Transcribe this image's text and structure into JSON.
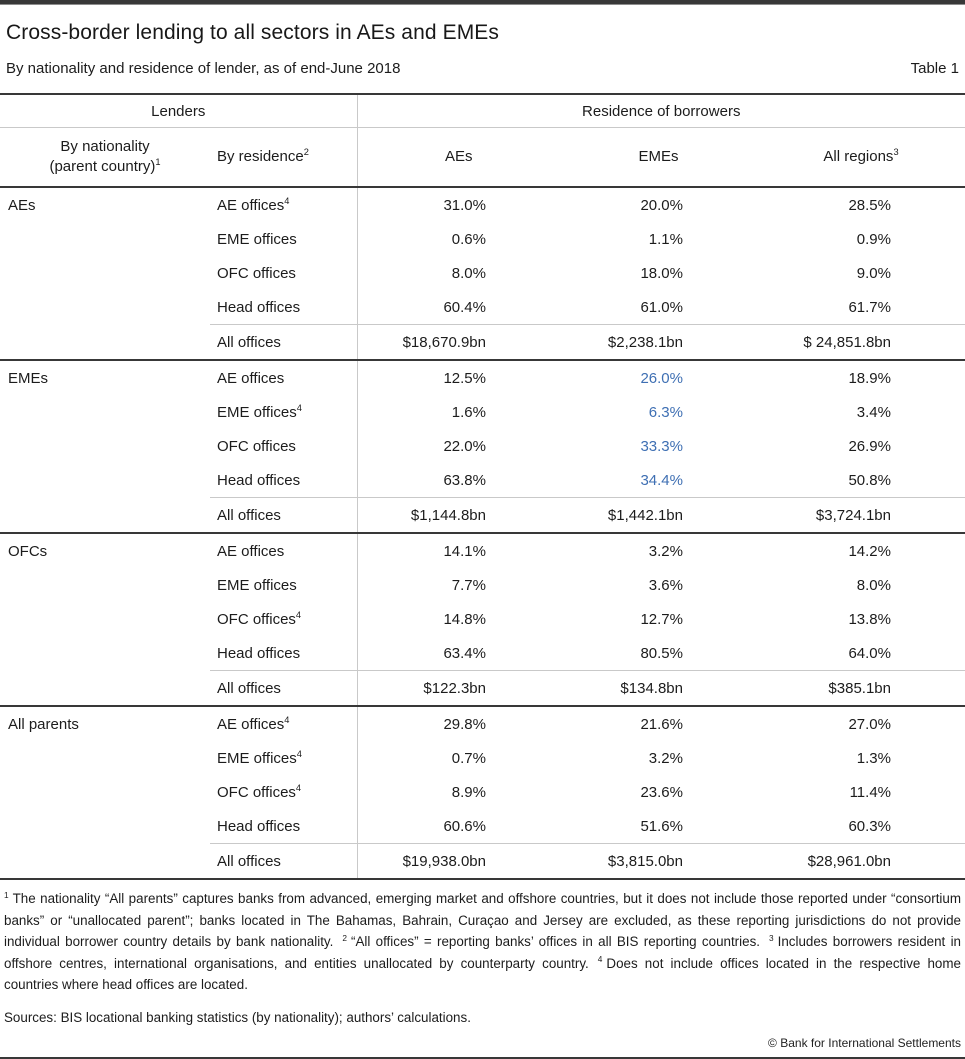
{
  "page": {
    "title": "Cross-border lending to all sectors in AEs and EMEs",
    "subtitle": "By nationality and residence of lender, as of end-June 2018",
    "table_label": "Table 1"
  },
  "table": {
    "header": {
      "lenders": "Lenders",
      "borrowers": "Residence of borrowers",
      "col_nationality_line1": "By nationality",
      "col_nationality_line2": "(parent country)",
      "col_nationality_sup": "1",
      "col_residence": "By residence",
      "col_residence_sup": "2",
      "col_aes": "AEs",
      "col_emes": "EMEs",
      "col_all_regions": "All regions",
      "col_all_regions_sup": "3"
    },
    "sections": [
      {
        "nationality": "AEs",
        "emes_highlight": false,
        "rows": [
          {
            "office": "AE offices",
            "sup": "4",
            "aes": "31.0%",
            "emes": "20.0%",
            "all": "28.5%"
          },
          {
            "office": "EME offices",
            "aes": "0.6%",
            "emes": "1.1%",
            "all": "0.9%"
          },
          {
            "office": "OFC offices",
            "aes": "8.0%",
            "emes": "18.0%",
            "all": "9.0%"
          },
          {
            "office": "Head offices",
            "aes": "60.4%",
            "emes": "61.0%",
            "all": "61.7%"
          },
          {
            "office": "All offices",
            "total": true,
            "aes": "$18,670.9bn",
            "emes": "$2,238.1bn",
            "all": "$ 24,851.8bn"
          }
        ]
      },
      {
        "nationality": "EMEs",
        "emes_highlight": true,
        "rows": [
          {
            "office": "AE offices",
            "aes": "12.5%",
            "emes": "26.0%",
            "all": "18.9%"
          },
          {
            "office": "EME offices",
            "sup": "4",
            "aes": "1.6%",
            "emes": "6.3%",
            "all": "3.4%"
          },
          {
            "office": "OFC offices",
            "aes": "22.0%",
            "emes": "33.3%",
            "all": "26.9%"
          },
          {
            "office": "Head offices",
            "aes": "63.8%",
            "emes": "34.4%",
            "all": "50.8%"
          },
          {
            "office": "All offices",
            "total": true,
            "aes": "$1,144.8bn",
            "emes": "$1,442.1bn",
            "all": "$3,724.1bn"
          }
        ]
      },
      {
        "nationality": "OFCs",
        "emes_highlight": false,
        "rows": [
          {
            "office": "AE offices",
            "aes": "14.1%",
            "emes": "3.2%",
            "all": "14.2%"
          },
          {
            "office": "EME offices",
            "aes": "7.7%",
            "emes": "3.6%",
            "all": "8.0%"
          },
          {
            "office": "OFC offices",
            "sup": "4",
            "aes": "14.8%",
            "emes": "12.7%",
            "all": "13.8%"
          },
          {
            "office": "Head offices",
            "aes": "63.4%",
            "emes": "80.5%",
            "all": "64.0%"
          },
          {
            "office": "All offices",
            "total": true,
            "aes": "$122.3bn",
            "emes": "$134.8bn",
            "all": "$385.1bn"
          }
        ]
      },
      {
        "nationality": "All parents",
        "emes_highlight": false,
        "rows": [
          {
            "office": "AE offices",
            "sup": "4",
            "aes": "29.8%",
            "emes": "21.6%",
            "all": "27.0%"
          },
          {
            "office": "EME offices",
            "sup": "4",
            "aes": "0.7%",
            "emes": "3.2%",
            "all": "1.3%"
          },
          {
            "office": "OFC offices",
            "sup": "4",
            "aes": "8.9%",
            "emes": "23.6%",
            "all": "11.4%"
          },
          {
            "office": "Head offices",
            "aes": "60.6%",
            "emes": "51.6%",
            "all": "60.3%"
          },
          {
            "office": "All offices",
            "total": true,
            "aes": "$19,938.0bn",
            "emes": "$3,815.0bn",
            "all": "$28,961.0bn"
          }
        ]
      }
    ]
  },
  "notes": {
    "footnotes": [
      {
        "marker": "1",
        "text": "The nationality “All parents” captures banks from advanced, emerging market and offshore countries, but it does not include those reported under “consortium banks” or “unallocated parent”; banks located in The Bahamas, Bahrain, Curaçao and Jersey are excluded, as these reporting jurisdictions do not provide individual borrower country details by bank nationality."
      },
      {
        "marker": "2",
        "text": "“All offices” = reporting banks’ offices in all BIS reporting countries."
      },
      {
        "marker": "3",
        "text": "Includes borrowers resident in offshore centres, international organisations, and entities unallocated by counterparty country."
      },
      {
        "marker": "4",
        "text": "Does not include offices located in the respective home countries where head offices are located."
      }
    ],
    "sources": "Sources: BIS locational banking statistics (by nationality); authors’ calculations.",
    "copyright": "© Bank for International Settlements"
  },
  "colors": {
    "highlight_blue": "#3E6FB3",
    "rule_dark": "#383838",
    "rule_light": "#C9C9C9",
    "text": "#1C1C1C"
  }
}
